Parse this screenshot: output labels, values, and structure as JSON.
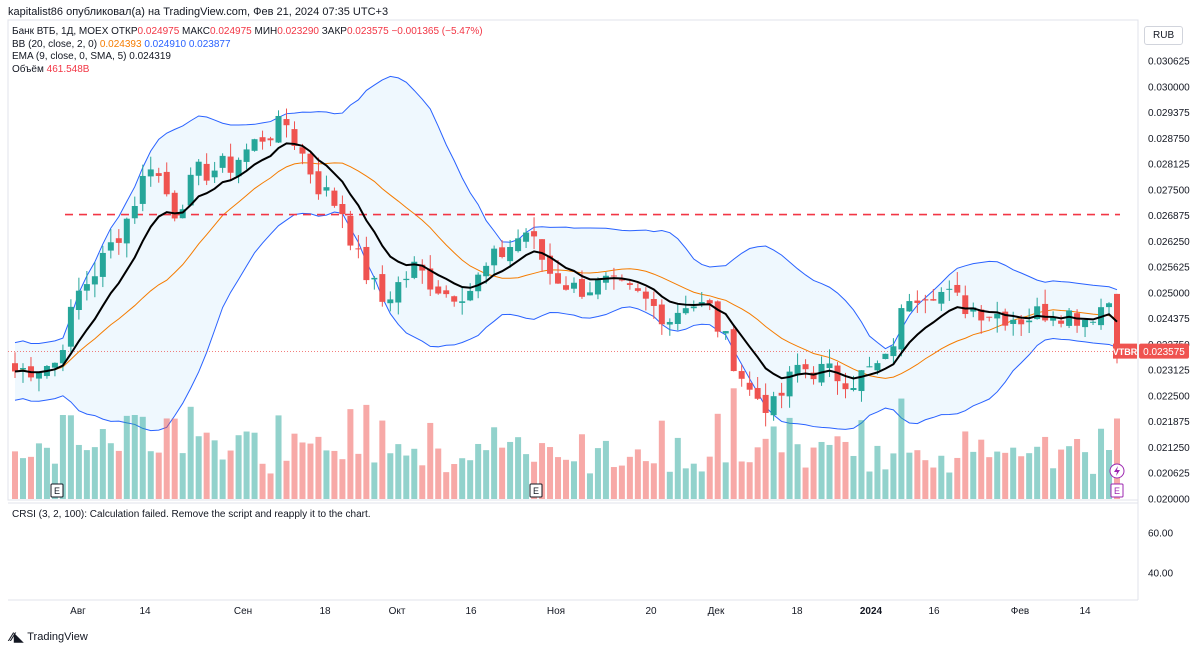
{
  "header": {
    "published": "kapitalist86 опубликовал(а) на TradingView.com, Фев 21, 2024 07:35 UTC+3"
  },
  "legend": {
    "symbol": "Банк ВТБ, 1Д, MOEX",
    "open_label": "ОТКР",
    "open": "0.024975",
    "high_label": "МАКС",
    "high": "0.024975",
    "low_label": "МИН",
    "low": "0.023290",
    "close_label": "ЗАКР",
    "close": "0.023575",
    "change": "−0.001365 (−5.47%)",
    "bb_label": "BB (20, close, 2, 0)",
    "bb_mid": "0.024393",
    "bb_upper": "0.024910",
    "bb_lower": "0.023877",
    "ema_label": "EMA (9, close, 0, SMA, 5)",
    "ema_value": "0.024319",
    "volume_label": "Объём",
    "volume_value": "461.548B"
  },
  "currency": "RUB",
  "price_tag": {
    "symbol": "VTBR",
    "value": "0.023575"
  },
  "rsi": {
    "message": "CRSI (3, 2, 100): Calculation failed. Remove the script and reapply it to the chart.",
    "ticks": [
      "60.00",
      "40.00"
    ]
  },
  "brand": "TradingView",
  "colors": {
    "up": "#26a69a",
    "down": "#ef5350",
    "ema": "#000000",
    "bb_mid": "#f57c00",
    "bb_band": "#2962ff",
    "level": "#f23645"
  },
  "chart_data": {
    "type": "candlestick",
    "x_ticks": [
      "Авг",
      "14",
      "Сен",
      "18",
      "Окт",
      "16",
      "Ноя",
      "20",
      "Дек",
      "18",
      "2024",
      "16",
      "Фев",
      "14"
    ],
    "y_ticks": [
      "0.030625",
      "0.030000",
      "0.029375",
      "0.028750",
      "0.028125",
      "0.027500",
      "0.026875",
      "0.026250",
      "0.025625",
      "0.025000",
      "0.024375",
      "0.023750",
      "0.023125",
      "0.022500",
      "0.021875",
      "0.021250",
      "0.020625",
      "0.020000"
    ],
    "ylim": [
      0.02,
      0.031
    ],
    "horizontal_level": 0.0269,
    "current_price": 0.023575,
    "event_markers": [
      "E",
      "E",
      "E"
    ],
    "anchors": [
      {
        "x": 0.0,
        "c": 0.0231
      },
      {
        "x": 5.0,
        "c": 0.0233
      },
      {
        "x": 8.0,
        "c": 0.025
      },
      {
        "x": 11.0,
        "c": 0.0258
      },
      {
        "x": 14.0,
        "c": 0.0268
      },
      {
        "x": 17.0,
        "c": 0.0282
      },
      {
        "x": 20.0,
        "c": 0.027
      },
      {
        "x": 23.0,
        "c": 0.0279
      },
      {
        "x": 27.0,
        "c": 0.0281
      },
      {
        "x": 31.0,
        "c": 0.0288
      },
      {
        "x": 34.0,
        "c": 0.0291
      },
      {
        "x": 38.0,
        "c": 0.0276
      },
      {
        "x": 41.0,
        "c": 0.027
      },
      {
        "x": 43.0,
        "c": 0.0258
      },
      {
        "x": 46.0,
        "c": 0.0248
      },
      {
        "x": 50.0,
        "c": 0.0256
      },
      {
        "x": 54.0,
        "c": 0.025
      },
      {
        "x": 57.0,
        "c": 0.0251
      },
      {
        "x": 60.0,
        "c": 0.0258
      },
      {
        "x": 64.0,
        "c": 0.0265
      },
      {
        "x": 67.0,
        "c": 0.0255
      },
      {
        "x": 70.0,
        "c": 0.0251
      },
      {
        "x": 74.0,
        "c": 0.0252
      },
      {
        "x": 78.0,
        "c": 0.0249
      },
      {
        "x": 82.0,
        "c": 0.0244
      },
      {
        "x": 84.0,
        "c": 0.0248
      },
      {
        "x": 87.0,
        "c": 0.0246
      },
      {
        "x": 90.0,
        "c": 0.0234
      },
      {
        "x": 92.0,
        "c": 0.0226
      },
      {
        "x": 95.0,
        "c": 0.0222
      },
      {
        "x": 98.0,
        "c": 0.0232
      },
      {
        "x": 101.0,
        "c": 0.0231
      },
      {
        "x": 105.0,
        "c": 0.0229
      },
      {
        "x": 109.0,
        "c": 0.0233
      },
      {
        "x": 112.0,
        "c": 0.025
      },
      {
        "x": 115.0,
        "c": 0.0251
      },
      {
        "x": 119.0,
        "c": 0.0247
      },
      {
        "x": 123.0,
        "c": 0.0245
      },
      {
        "x": 126.0,
        "c": 0.0244
      },
      {
        "x": 130.0,
        "c": 0.0246
      },
      {
        "x": 134.0,
        "c": 0.0244
      },
      {
        "x": 137.0,
        "c": 0.0248
      },
      {
        "x": 138.0,
        "c": 0.02357
      }
    ],
    "volume_range": [
      0,
      20
    ]
  }
}
